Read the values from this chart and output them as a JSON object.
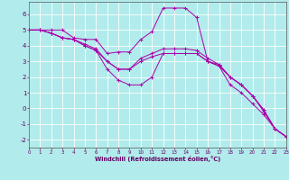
{
  "xlabel": "Windchill (Refroidissement éolien,°C)",
  "background_color": "#b2ebeb",
  "grid_color": "#ffffff",
  "line_color": "#aa00aa",
  "xlim": [
    0,
    23
  ],
  "ylim": [
    -2.5,
    6.8
  ],
  "yticks": [
    -2,
    -1,
    0,
    1,
    2,
    3,
    4,
    5,
    6
  ],
  "xticks": [
    0,
    1,
    2,
    3,
    4,
    5,
    6,
    7,
    8,
    9,
    10,
    11,
    12,
    13,
    14,
    15,
    16,
    17,
    18,
    19,
    20,
    21,
    22,
    23
  ],
  "series": [
    [
      5.0,
      5.0,
      5.0,
      5.0,
      4.5,
      4.4,
      4.4,
      3.5,
      3.6,
      3.6,
      4.4,
      4.9,
      6.4,
      6.4,
      6.4,
      5.8,
      3.0,
      2.7,
      1.5,
      1.0,
      0.3,
      -0.4,
      -1.3,
      -1.8
    ],
    [
      5.0,
      5.0,
      4.8,
      4.5,
      4.4,
      4.0,
      3.7,
      2.5,
      1.8,
      1.5,
      1.5,
      2.0,
      3.5,
      3.5,
      3.5,
      3.5,
      3.0,
      2.7,
      2.0,
      1.5,
      0.8,
      -0.2,
      -1.3,
      -1.8
    ],
    [
      5.0,
      5.0,
      4.8,
      4.5,
      4.4,
      4.1,
      3.8,
      3.0,
      2.5,
      2.5,
      3.2,
      3.5,
      3.8,
      3.8,
      3.8,
      3.7,
      3.2,
      2.8,
      2.0,
      1.5,
      0.8,
      -0.1,
      -1.3,
      -1.8
    ],
    [
      5.0,
      5.0,
      4.8,
      4.5,
      4.4,
      4.0,
      3.7,
      3.0,
      2.5,
      2.5,
      3.0,
      3.3,
      3.5,
      3.5,
      3.5,
      3.5,
      3.0,
      2.8,
      2.0,
      1.5,
      0.8,
      -0.1,
      -1.3,
      -1.8
    ]
  ]
}
